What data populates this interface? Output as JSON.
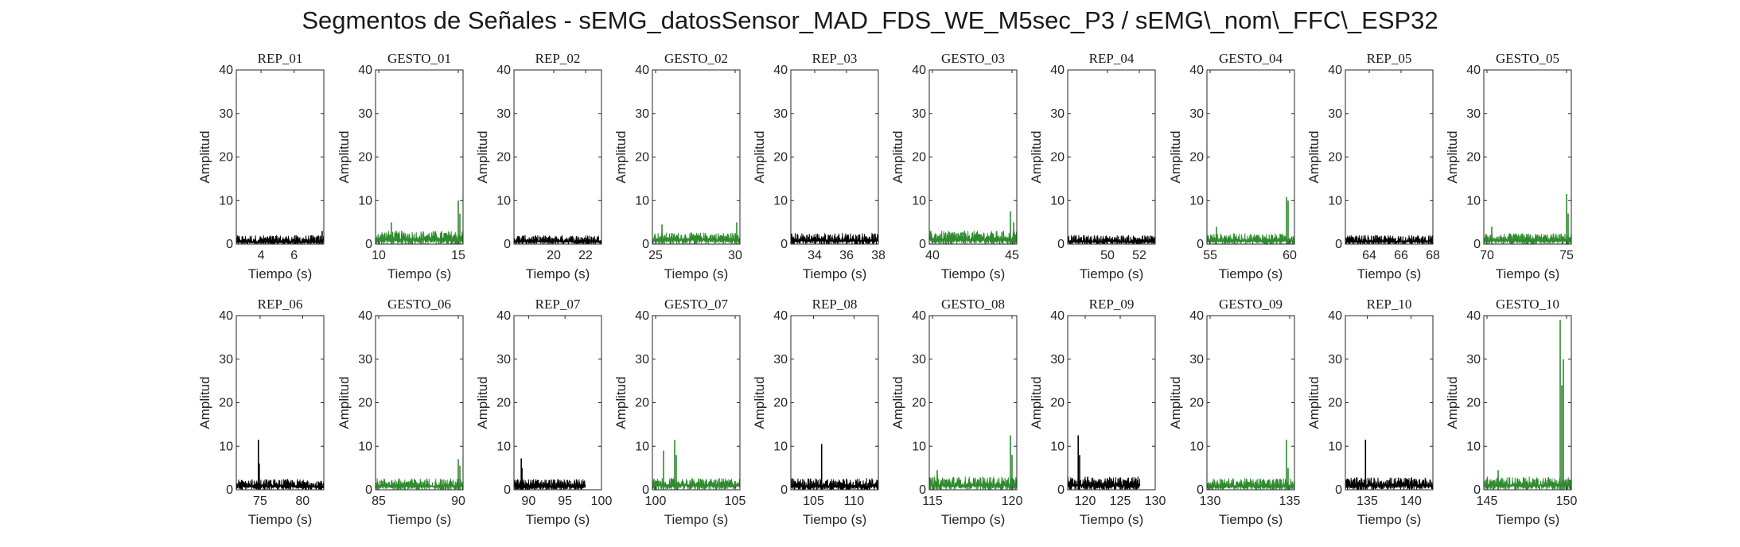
{
  "figure_title": "Segmentos de Señales - sEMG_datosSensor_MAD_FDS_WE_M5sec_P3 / sEMG\\_nom\\_FFC\\_ESP32",
  "colors": {
    "rep": "#000000",
    "gesto": "#2e8b2e",
    "axes": "#262626"
  },
  "chart_data": [
    {
      "type": "line",
      "title": "REP_01",
      "xlabel": "Tiempo (s)",
      "ylabel": "Amplitud",
      "xlim": [
        2.5,
        7.8
      ],
      "ylim": [
        0,
        40
      ],
      "xticks": [
        "4",
        "6"
      ],
      "yticks": [
        "0",
        "10",
        "20",
        "30",
        "40"
      ],
      "color": "#000000",
      "series": [
        {
          "x_range": [
            2.5,
            7.8
          ],
          "baseline": [
            0.5,
            2.0
          ],
          "spikes": [
            [
              7.7,
              3
            ]
          ]
        }
      ]
    },
    {
      "type": "line",
      "title": "GESTO_01",
      "xlabel": "Tiempo (s)",
      "ylabel": "Amplitud",
      "xlim": [
        9.8,
        15.3
      ],
      "ylim": [
        0,
        40
      ],
      "xticks": [
        "10",
        "15"
      ],
      "yticks": [
        "0",
        "10",
        "20",
        "30",
        "40"
      ],
      "color": "#2e8b2e",
      "series": [
        {
          "x_range": [
            9.8,
            15.3
          ],
          "baseline": [
            1.0,
            3.0
          ],
          "spikes": [
            [
              10.8,
              5
            ],
            [
              15.0,
              10
            ],
            [
              15.1,
              7
            ]
          ]
        }
      ]
    },
    {
      "type": "line",
      "title": "REP_02",
      "xlabel": "Tiempo (s)",
      "ylabel": "Amplitud",
      "xlim": [
        17.5,
        23.0
      ],
      "ylim": [
        0,
        40
      ],
      "xticks": [
        "20",
        "22"
      ],
      "yticks": [
        "0",
        "10",
        "20",
        "30",
        "40"
      ],
      "color": "#000000",
      "series": [
        {
          "x_range": [
            17.5,
            23.0
          ],
          "baseline": [
            0.6,
            2.0
          ],
          "spikes": []
        }
      ]
    },
    {
      "type": "line",
      "title": "GESTO_02",
      "xlabel": "Tiempo (s)",
      "ylabel": "Amplitud",
      "xlim": [
        24.8,
        30.3
      ],
      "ylim": [
        0,
        40
      ],
      "xticks": [
        "25",
        "30"
      ],
      "yticks": [
        "0",
        "10",
        "20",
        "30",
        "40"
      ],
      "color": "#2e8b2e",
      "series": [
        {
          "x_range": [
            24.8,
            30.3
          ],
          "baseline": [
            1.0,
            2.6
          ],
          "spikes": [
            [
              25.4,
              4.5
            ],
            [
              30.1,
              5
            ]
          ]
        }
      ]
    },
    {
      "type": "line",
      "title": "REP_03",
      "xlabel": "Tiempo (s)",
      "ylabel": "Amplitud",
      "xlim": [
        32.5,
        38.0
      ],
      "ylim": [
        0,
        40
      ],
      "xticks": [
        "34",
        "36",
        "38"
      ],
      "yticks": [
        "0",
        "10",
        "20",
        "30",
        "40"
      ],
      "color": "#000000",
      "series": [
        {
          "x_range": [
            32.5,
            38.0
          ],
          "baseline": [
            0.8,
            2.5
          ],
          "spikes": []
        }
      ]
    },
    {
      "type": "line",
      "title": "GESTO_03",
      "xlabel": "Tiempo (s)",
      "ylabel": "Amplitud",
      "xlim": [
        39.8,
        45.3
      ],
      "ylim": [
        0,
        40
      ],
      "xticks": [
        "40",
        "45"
      ],
      "yticks": [
        "0",
        "10",
        "20",
        "30",
        "40"
      ],
      "color": "#2e8b2e",
      "series": [
        {
          "x_range": [
            39.8,
            45.3
          ],
          "baseline": [
            1.0,
            3.0
          ],
          "spikes": [
            [
              44.9,
              7.5
            ],
            [
              45.1,
              5
            ]
          ]
        }
      ]
    },
    {
      "type": "line",
      "title": "REP_04",
      "xlabel": "Tiempo (s)",
      "ylabel": "Amplitud",
      "xlim": [
        47.5,
        53.0
      ],
      "ylim": [
        0,
        40
      ],
      "xticks": [
        "50",
        "52"
      ],
      "yticks": [
        "0",
        "10",
        "20",
        "30",
        "40"
      ],
      "color": "#000000",
      "series": [
        {
          "x_range": [
            47.5,
            53.0
          ],
          "baseline": [
            0.6,
            2.0
          ],
          "spikes": []
        }
      ]
    },
    {
      "type": "line",
      "title": "GESTO_04",
      "xlabel": "Tiempo (s)",
      "ylabel": "Amplitud",
      "xlim": [
        54.8,
        60.3
      ],
      "ylim": [
        0,
        40
      ],
      "xticks": [
        "55",
        "60"
      ],
      "yticks": [
        "0",
        "10",
        "20",
        "30",
        "40"
      ],
      "color": "#2e8b2e",
      "series": [
        {
          "x_range": [
            54.8,
            60.3
          ],
          "baseline": [
            0.8,
            2.4
          ],
          "spikes": [
            [
              55.4,
              4
            ],
            [
              59.8,
              10.8
            ],
            [
              59.9,
              10
            ]
          ]
        }
      ]
    },
    {
      "type": "line",
      "title": "REP_05",
      "xlabel": "Tiempo (s)",
      "ylabel": "Amplitud",
      "xlim": [
        62.5,
        68.0
      ],
      "ylim": [
        0,
        40
      ],
      "xticks": [
        "64",
        "66",
        "68"
      ],
      "yticks": [
        "0",
        "10",
        "20",
        "30",
        "40"
      ],
      "color": "#000000",
      "series": [
        {
          "x_range": [
            62.5,
            68.0
          ],
          "baseline": [
            0.6,
            2.0
          ],
          "spikes": []
        }
      ]
    },
    {
      "type": "line",
      "title": "GESTO_05",
      "xlabel": "Tiempo (s)",
      "ylabel": "Amplitud",
      "xlim": [
        69.8,
        75.3
      ],
      "ylim": [
        0,
        40
      ],
      "xticks": [
        "70",
        "75"
      ],
      "yticks": [
        "0",
        "10",
        "20",
        "30",
        "40"
      ],
      "color": "#2e8b2e",
      "series": [
        {
          "x_range": [
            69.8,
            75.3
          ],
          "baseline": [
            0.8,
            2.4
          ],
          "spikes": [
            [
              70.3,
              4
            ],
            [
              75.0,
              11.5
            ],
            [
              75.1,
              7
            ]
          ]
        }
      ]
    },
    {
      "type": "line",
      "title": "REP_06",
      "xlabel": "Tiempo (s)",
      "ylabel": "Amplitud",
      "xlim": [
        72.2,
        82.5
      ],
      "ylim": [
        0,
        40
      ],
      "xticks": [
        "75",
        "80"
      ],
      "yticks": [
        "0",
        "10",
        "20",
        "30",
        "40"
      ],
      "color": "#000000",
      "series": [
        {
          "x_range": [
            72.2,
            82.5
          ],
          "baseline": [
            0.8,
            2.4
          ],
          "spikes": [
            [
              74.8,
              11.5
            ],
            [
              74.9,
              6
            ]
          ]
        }
      ]
    },
    {
      "type": "line",
      "title": "GESTO_06",
      "xlabel": "Tiempo (s)",
      "ylabel": "Amplitud",
      "xlim": [
        84.8,
        90.3
      ],
      "ylim": [
        0,
        40
      ],
      "xticks": [
        "85",
        "90"
      ],
      "yticks": [
        "0",
        "10",
        "20",
        "30",
        "40"
      ],
      "color": "#2e8b2e",
      "series": [
        {
          "x_range": [
            84.8,
            90.3
          ],
          "baseline": [
            0.8,
            2.6
          ],
          "spikes": [
            [
              90.0,
              7
            ],
            [
              90.1,
              5.5
            ]
          ]
        }
      ]
    },
    {
      "type": "line",
      "title": "REP_07",
      "xlabel": "Tiempo (s)",
      "ylabel": "Amplitud",
      "xlim": [
        88.0,
        100.0
      ],
      "ylim": [
        0,
        40
      ],
      "xticks": [
        "90",
        "95",
        "100"
      ],
      "yticks": [
        "0",
        "10",
        "20",
        "30",
        "40"
      ],
      "color": "#000000",
      "series": [
        {
          "x_range": [
            88.0,
            97.8
          ],
          "baseline": [
            0.8,
            2.4
          ],
          "spikes": [
            [
              89.0,
              7.2
            ],
            [
              89.1,
              5
            ]
          ]
        }
      ]
    },
    {
      "type": "line",
      "title": "GESTO_07",
      "xlabel": "Tiempo (s)",
      "ylabel": "Amplitud",
      "xlim": [
        99.8,
        105.3
      ],
      "ylim": [
        0,
        40
      ],
      "xticks": [
        "100",
        "105"
      ],
      "yticks": [
        "0",
        "10",
        "20",
        "30",
        "40"
      ],
      "color": "#2e8b2e",
      "series": [
        {
          "x_range": [
            99.8,
            105.3
          ],
          "baseline": [
            1.0,
            2.6
          ],
          "spikes": [
            [
              100.5,
              9
            ],
            [
              101.2,
              11.5
            ],
            [
              101.3,
              8
            ]
          ]
        }
      ]
    },
    {
      "type": "line",
      "title": "REP_08",
      "xlabel": "Tiempo (s)",
      "ylabel": "Amplitud",
      "xlim": [
        102.2,
        113.0
      ],
      "ylim": [
        0,
        40
      ],
      "xticks": [
        "105",
        "110"
      ],
      "yticks": [
        "0",
        "10",
        "20",
        "30",
        "40"
      ],
      "color": "#000000",
      "series": [
        {
          "x_range": [
            102.2,
            113.0
          ],
          "baseline": [
            0.8,
            2.6
          ],
          "spikes": [
            [
              106.0,
              10.5
            ]
          ]
        }
      ]
    },
    {
      "type": "line",
      "title": "GESTO_08",
      "xlabel": "Tiempo (s)",
      "ylabel": "Amplitud",
      "xlim": [
        114.8,
        120.3
      ],
      "ylim": [
        0,
        40
      ],
      "xticks": [
        "115",
        "120"
      ],
      "yticks": [
        "0",
        "10",
        "20",
        "30",
        "40"
      ],
      "color": "#2e8b2e",
      "series": [
        {
          "x_range": [
            114.8,
            120.3
          ],
          "baseline": [
            1.0,
            3.0
          ],
          "spikes": [
            [
              115.3,
              4.5
            ],
            [
              119.9,
              12.5
            ],
            [
              120.0,
              8
            ]
          ]
        }
      ]
    },
    {
      "type": "line",
      "title": "REP_09",
      "xlabel": "Tiempo (s)",
      "ylabel": "Amplitud",
      "xlim": [
        117.5,
        130.0
      ],
      "ylim": [
        0,
        40
      ],
      "xticks": [
        "120",
        "125",
        "130"
      ],
      "yticks": [
        "0",
        "10",
        "20",
        "30",
        "40"
      ],
      "color": "#000000",
      "series": [
        {
          "x_range": [
            117.5,
            127.8
          ],
          "baseline": [
            1.0,
            3.0
          ],
          "spikes": [
            [
              119.0,
              12.5
            ],
            [
              119.2,
              8
            ]
          ]
        }
      ]
    },
    {
      "type": "line",
      "title": "GESTO_09",
      "xlabel": "Tiempo (s)",
      "ylabel": "Amplitud",
      "xlim": [
        129.8,
        135.3
      ],
      "ylim": [
        0,
        40
      ],
      "xticks": [
        "130",
        "135"
      ],
      "yticks": [
        "0",
        "10",
        "20",
        "30",
        "40"
      ],
      "color": "#2e8b2e",
      "series": [
        {
          "x_range": [
            129.8,
            135.3
          ],
          "baseline": [
            0.8,
            2.6
          ],
          "spikes": [
            [
              134.8,
              11.5
            ],
            [
              134.9,
              5
            ]
          ]
        }
      ]
    },
    {
      "type": "line",
      "title": "REP_10",
      "xlabel": "Tiempo (s)",
      "ylabel": "Amplitud",
      "xlim": [
        132.5,
        142.5
      ],
      "ylim": [
        0,
        40
      ],
      "xticks": [
        "135",
        "140"
      ],
      "yticks": [
        "0",
        "10",
        "20",
        "30",
        "40"
      ],
      "color": "#000000",
      "series": [
        {
          "x_range": [
            132.5,
            142.5
          ],
          "baseline": [
            1.0,
            2.8
          ],
          "spikes": [
            [
              134.8,
              11.5
            ]
          ]
        }
      ]
    },
    {
      "type": "line",
      "title": "GESTO_10",
      "xlabel": "Tiempo (s)",
      "ylabel": "Amplitud",
      "xlim": [
        144.8,
        150.3
      ],
      "ylim": [
        0,
        40
      ],
      "xticks": [
        "145",
        "150"
      ],
      "yticks": [
        "0",
        "10",
        "20",
        "30",
        "40"
      ],
      "color": "#2e8b2e",
      "series": [
        {
          "x_range": [
            144.8,
            150.3
          ],
          "baseline": [
            1.0,
            3.0
          ],
          "spikes": [
            [
              145.7,
              4.5
            ],
            [
              149.6,
              39
            ],
            [
              149.7,
              24
            ],
            [
              149.8,
              30
            ]
          ]
        }
      ]
    }
  ]
}
